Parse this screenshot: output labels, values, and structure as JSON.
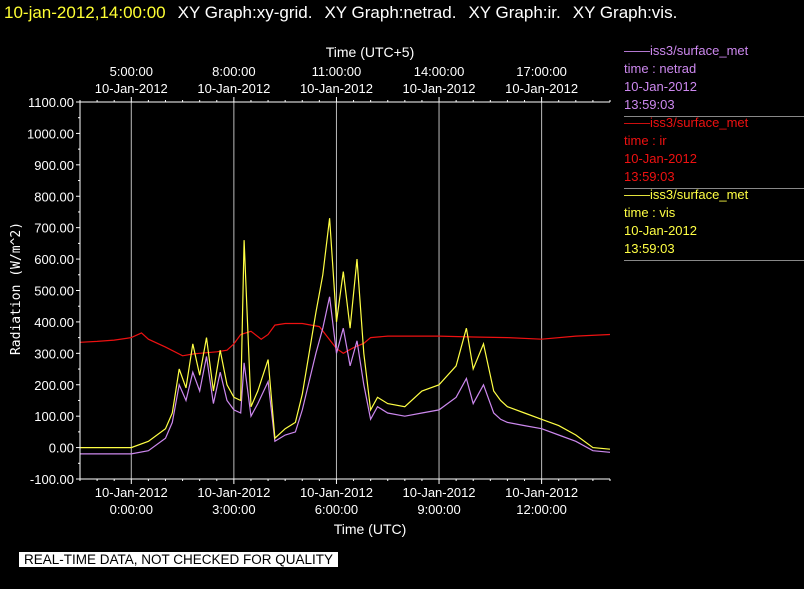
{
  "header": {
    "timestamp": "10-jan-2012,14:00:00",
    "graphs": [
      "XY Graph:xy-grid.",
      "XY Graph:netrad.",
      "XY Graph:ir.",
      "XY Graph:vis."
    ]
  },
  "colors": {
    "timestamp": "#ffff33",
    "netrad": "#cc88ee",
    "ir": "#ee1111",
    "vis": "#ffff44",
    "axes": "#ffffff",
    "grid": "#bbbbbb"
  },
  "legend": [
    {
      "key": "netrad",
      "source": "iss3/surface_met",
      "var": "time : netrad",
      "date": "10-Jan-2012",
      "time": "13:59:03"
    },
    {
      "key": "ir",
      "source": "iss3/surface_met",
      "var": "time : ir",
      "date": "10-Jan-2012",
      "time": "13:59:03"
    },
    {
      "key": "vis",
      "source": "iss3/surface_met",
      "var": "time : vis",
      "date": "10-Jan-2012",
      "time": "13:59:03"
    }
  ],
  "disclaimer": "REAL-TIME DATA, NOT CHECKED FOR QUALITY",
  "chart_data": {
    "type": "line",
    "xlabel": "Time (UTC)",
    "xlabel_top": "Time (UTC+5)",
    "ylabel": "Radiation (W/m^2)",
    "xlim": [
      -1.5,
      14.0
    ],
    "ylim": [
      -100,
      1100
    ],
    "yticks": [
      -100,
      0,
      100,
      200,
      300,
      400,
      500,
      600,
      700,
      800,
      900,
      1000,
      1100
    ],
    "ytick_labels": [
      "-100.00",
      "0.00",
      "100.00",
      "200.00",
      "300.00",
      "400.00",
      "500.00",
      "600.00",
      "700.00",
      "800.00",
      "900.00",
      "1000.00",
      "1100.00"
    ],
    "xticks": [
      0,
      3,
      6,
      9,
      12
    ],
    "xtick_labels_bottom": [
      [
        "10-Jan-2012",
        "0:00:00"
      ],
      [
        "10-Jan-2012",
        "3:00:00"
      ],
      [
        "10-Jan-2012",
        "6:00:00"
      ],
      [
        "10-Jan-2012",
        "9:00:00"
      ],
      [
        "10-Jan-2012",
        "12:00:00"
      ]
    ],
    "xtick_labels_top": [
      [
        "5:00:00",
        "10-Jan-2012"
      ],
      [
        "8:00:00",
        "10-Jan-2012"
      ],
      [
        "11:00:00",
        "10-Jan-2012"
      ],
      [
        "14:00:00",
        "10-Jan-2012"
      ],
      [
        "17:00:00",
        "10-Jan-2012"
      ]
    ],
    "grid": "vertical",
    "series": [
      {
        "name": "time : ir",
        "key": "ir",
        "x": [
          -1.5,
          -1.0,
          -0.5,
          0.0,
          0.3,
          0.5,
          1.0,
          1.5,
          1.8,
          2.0,
          2.5,
          2.8,
          3.0,
          3.2,
          3.5,
          3.8,
          4.0,
          4.2,
          4.5,
          5.0,
          5.5,
          6.0,
          6.2,
          6.5,
          6.8,
          7.0,
          7.5,
          8.0,
          9.0,
          10.0,
          11.0,
          12.0,
          13.0,
          14.0
        ],
        "y": [
          335,
          338,
          342,
          350,
          365,
          345,
          320,
          292,
          298,
          300,
          305,
          310,
          330,
          360,
          370,
          345,
          360,
          390,
          395,
          395,
          385,
          315,
          300,
          318,
          332,
          350,
          355,
          355,
          355,
          352,
          350,
          345,
          355,
          360
        ]
      },
      {
        "name": "time : netrad",
        "key": "netrad",
        "x": [
          -1.5,
          -0.5,
          0.0,
          0.5,
          1.0,
          1.2,
          1.4,
          1.6,
          1.8,
          2.0,
          2.2,
          2.4,
          2.6,
          2.8,
          3.0,
          3.2,
          3.3,
          3.5,
          3.7,
          4.0,
          4.2,
          4.5,
          4.8,
          5.0,
          5.4,
          5.6,
          5.8,
          6.0,
          6.2,
          6.4,
          6.6,
          6.8,
          7.0,
          7.2,
          7.5,
          8.0,
          8.5,
          9.0,
          9.5,
          9.8,
          10.0,
          10.3,
          10.6,
          10.8,
          11.0,
          11.5,
          12.0,
          12.5,
          13.0,
          13.5,
          14.0
        ],
        "y": [
          -20,
          -20,
          -20,
          -10,
          30,
          80,
          200,
          150,
          240,
          180,
          290,
          140,
          240,
          150,
          120,
          110,
          270,
          100,
          140,
          210,
          20,
          40,
          50,
          120,
          300,
          380,
          480,
          300,
          380,
          260,
          340,
          200,
          90,
          130,
          110,
          100,
          110,
          120,
          160,
          220,
          140,
          200,
          110,
          90,
          80,
          70,
          60,
          40,
          20,
          -10,
          -15
        ]
      },
      {
        "name": "time : vis",
        "key": "vis",
        "x": [
          -1.5,
          -0.5,
          0.0,
          0.5,
          1.0,
          1.2,
          1.4,
          1.6,
          1.8,
          2.0,
          2.2,
          2.4,
          2.6,
          2.8,
          3.0,
          3.2,
          3.3,
          3.5,
          3.7,
          4.0,
          4.2,
          4.5,
          4.8,
          5.0,
          5.4,
          5.6,
          5.8,
          6.0,
          6.2,
          6.4,
          6.6,
          6.8,
          7.0,
          7.2,
          7.5,
          8.0,
          8.5,
          9.0,
          9.5,
          9.8,
          10.0,
          10.3,
          10.6,
          10.8,
          11.0,
          11.5,
          12.0,
          12.5,
          13.0,
          13.5,
          14.0
        ],
        "y": [
          0,
          0,
          0,
          20,
          60,
          110,
          250,
          190,
          330,
          230,
          350,
          180,
          310,
          200,
          160,
          150,
          660,
          130,
          180,
          280,
          30,
          60,
          80,
          170,
          430,
          550,
          730,
          400,
          560,
          380,
          600,
          300,
          120,
          160,
          140,
          130,
          180,
          200,
          260,
          380,
          250,
          330,
          180,
          150,
          130,
          110,
          90,
          70,
          40,
          0,
          -5
        ]
      }
    ]
  }
}
